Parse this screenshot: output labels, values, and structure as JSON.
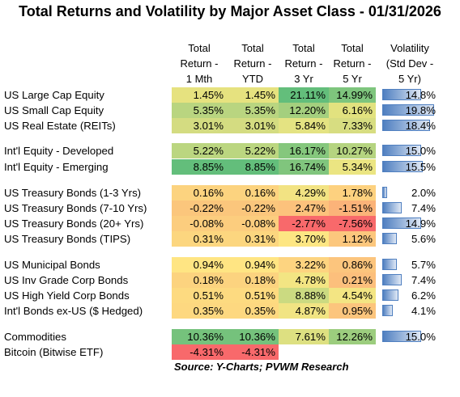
{
  "title": "Total Returns and Volatility by Major Asset Class - 01/31/2026",
  "headers": {
    "m1": "Total\nReturn -\n1 Mth",
    "ytd": "Total\nReturn -\nYTD",
    "y3": "Total\nReturn -\n3 Yr",
    "y5": "Total\nReturn -\n5 Yr",
    "vol": "Volatility\n(Std Dev -\n5 Yr)"
  },
  "rows": [
    {
      "label": "US Large Cap Equity",
      "m1": "1.45%",
      "ytd": "1.45%",
      "y3": "21.11%",
      "y5": "14.99%",
      "vol": "14.8%",
      "vol_value": 14.8,
      "colors": {
        "m1": "#e6e27f",
        "ytd": "#e6e27f",
        "y3": "#63be7b",
        "y5": "#7ec57d"
      }
    },
    {
      "label": "US Small Cap Equity",
      "m1": "5.35%",
      "ytd": "5.35%",
      "y3": "12.20%",
      "y5": "6.16%",
      "vol": "19.8%",
      "vol_value": 19.8,
      "colors": {
        "m1": "#b9d580",
        "ytd": "#b9d580",
        "y3": "#a4cf7e",
        "y5": "#e2e27f"
      }
    },
    {
      "label": "US Real Estate (REITs)",
      "m1": "3.01%",
      "ytd": "3.01%",
      "y3": "5.84%",
      "y5": "7.33%",
      "vol": "18.4%",
      "vol_value": 18.4,
      "colors": {
        "m1": "#d4dc81",
        "ytd": "#d4dc81",
        "y3": "#e4e382",
        "y5": "#d7dd81"
      }
    },
    {
      "label": "Int'l Equity - Developed",
      "m1": "5.22%",
      "ytd": "5.22%",
      "y3": "16.17%",
      "y5": "10.27%",
      "vol": "15.0%",
      "vol_value": 15.0,
      "colors": {
        "m1": "#bbd680",
        "ytd": "#bbd680",
        "y3": "#85c77d",
        "y5": "#b5d480"
      }
    },
    {
      "label": "Int'l Equity - Emerging",
      "m1": "8.85%",
      "ytd": "8.85%",
      "y3": "16.74%",
      "y5": "5.34%",
      "vol": "15.5%",
      "vol_value": 15.5,
      "colors": {
        "m1": "#63be7b",
        "ytd": "#63be7b",
        "y3": "#80c57d",
        "y5": "#ebe582"
      }
    },
    {
      "label": "US Treasury Bonds (1-3 Yrs)",
      "m1": "0.16%",
      "ytd": "0.16%",
      "y3": "4.29%",
      "y5": "1.78%",
      "vol": "2.0%",
      "vol_value": 2.0,
      "colors": {
        "m1": "#fcd37f",
        "ytd": "#fcd37f",
        "y3": "#f2e383",
        "y5": "#fdd17f"
      }
    },
    {
      "label": "US Treasury Bonds (7-10 Yrs)",
      "m1": "-0.22%",
      "ytd": "-0.22%",
      "y3": "2.47%",
      "y5": "-1.51%",
      "vol": "7.4%",
      "vol_value": 7.4,
      "colors": {
        "m1": "#fbc67c",
        "ytd": "#fbc67c",
        "y3": "#fcc27c",
        "y5": "#fbb379"
      }
    },
    {
      "label": "US Treasury Bonds (20+ Yrs)",
      "m1": "-0.08%",
      "ytd": "-0.08%",
      "y3": "-2.77%",
      "y5": "-7.56%",
      "vol": "14.9%",
      "vol_value": 14.9,
      "colors": {
        "m1": "#fccd7e",
        "ytd": "#fccd7e",
        "y3": "#f8696b",
        "y5": "#f8696b"
      }
    },
    {
      "label": "US Treasury Bonds (TIPS)",
      "m1": "0.31%",
      "ytd": "0.31%",
      "y3": "3.70%",
      "y5": "1.12%",
      "vol": "5.6%",
      "vol_value": 5.6,
      "colors": {
        "m1": "#fcd67f",
        "ytd": "#fcd67f",
        "y3": "#fde683",
        "y5": "#fcc77d"
      }
    },
    {
      "label": "US Municipal Bonds",
      "m1": "0.94%",
      "ytd": "0.94%",
      "y3": "3.22%",
      "y5": "0.86%",
      "vol": "5.7%",
      "vol_value": 5.7,
      "colors": {
        "m1": "#ffe583",
        "ytd": "#ffe583",
        "y3": "#fdd480",
        "y5": "#fcc57d"
      }
    },
    {
      "label": "US Inv Grade Corp Bonds",
      "m1": "0.18%",
      "ytd": "0.18%",
      "y3": "4.78%",
      "y5": "0.21%",
      "vol": "7.4%",
      "vol_value": 7.4,
      "colors": {
        "m1": "#fcd37f",
        "ytd": "#fcd37f",
        "y3": "#f3e583",
        "y5": "#fcbf7c"
      }
    },
    {
      "label": "US High Yield Corp Bonds",
      "m1": "0.51%",
      "ytd": "0.51%",
      "y3": "8.88%",
      "y5": "4.54%",
      "vol": "6.2%",
      "vol_value": 6.2,
      "colors": {
        "m1": "#fdda80",
        "ytd": "#fdda80",
        "y3": "#cbda81",
        "y5": "#f3e583"
      }
    },
    {
      "label": "Int'l Bonds ex-US ($ Hedged)",
      "m1": "0.35%",
      "ytd": "0.35%",
      "y3": "4.87%",
      "y5": "0.95%",
      "vol": "4.1%",
      "vol_value": 4.1,
      "colors": {
        "m1": "#fdd880",
        "ytd": "#fdd880",
        "y3": "#f1e483",
        "y5": "#fcc57d"
      }
    },
    {
      "label": "Commodities",
      "m1": "10.36%",
      "ytd": "10.36%",
      "y3": "7.61%",
      "y5": "12.26%",
      "vol": "15.0%",
      "vol_value": 15.0,
      "colors": {
        "m1": "#75c27c",
        "ytd": "#75c27c",
        "y3": "#dde081",
        "y5": "#9ccd7e"
      }
    },
    {
      "label": "Bitcoin (Bitwise ETF)",
      "m1": "-4.31%",
      "ytd": "-4.31%",
      "y3": "",
      "y5": "",
      "vol": "",
      "vol_value": null,
      "colors": {
        "m1": "#f8696b",
        "ytd": "#f8696b",
        "y3": "",
        "y5": ""
      }
    }
  ],
  "vol_max": 19.8,
  "source": "Source:  Y-Charts; PVWM Research"
}
